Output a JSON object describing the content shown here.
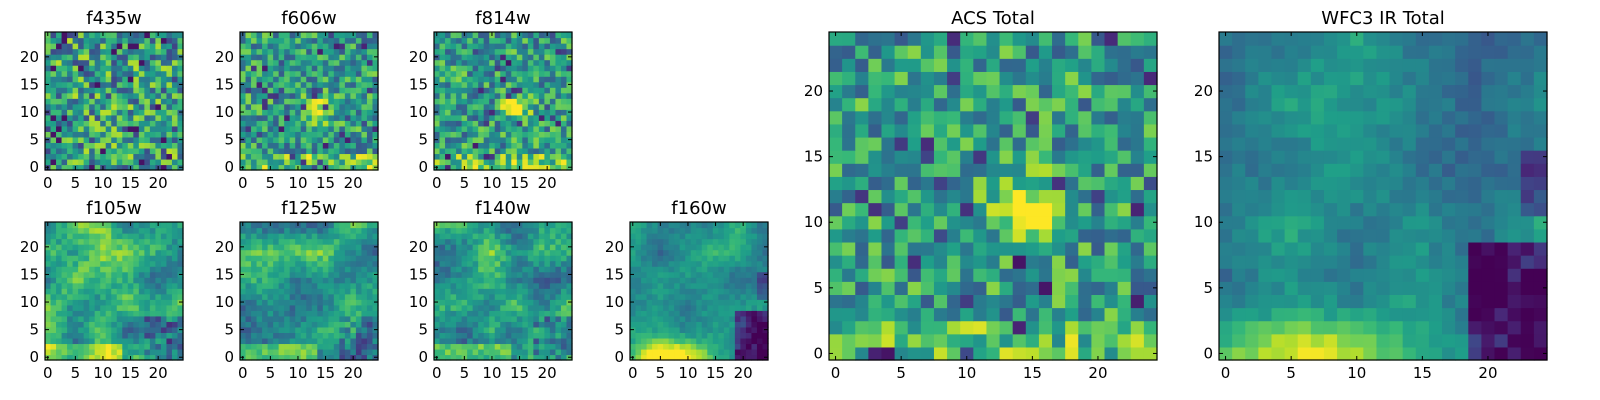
{
  "panels": [
    {
      "title": "f435w",
      "ticks_x": [
        0,
        5,
        10,
        15,
        20
      ],
      "ticks_y": [
        0,
        5,
        10,
        15,
        20
      ],
      "seed": 11,
      "pattern": "flat"
    },
    {
      "title": "f606w",
      "ticks_x": [
        0,
        5,
        10,
        15,
        20
      ],
      "ticks_y": [
        0,
        5,
        10,
        15,
        20
      ],
      "seed": 23,
      "pattern": "acs"
    },
    {
      "title": "f814w",
      "ticks_x": [
        0,
        5,
        10,
        15,
        20
      ],
      "ticks_y": [
        0,
        5,
        10,
        15,
        20
      ],
      "seed": 37,
      "pattern": "acs"
    },
    {
      "title": "f105w",
      "ticks_x": [
        0,
        5,
        10,
        15,
        20
      ],
      "ticks_y": [
        0,
        5,
        10,
        15,
        20
      ],
      "seed": 41,
      "pattern": "ir"
    },
    {
      "title": "f125w",
      "ticks_x": [
        0,
        5,
        10,
        15,
        20
      ],
      "ticks_y": [
        0,
        5,
        10,
        15,
        20
      ],
      "seed": 53,
      "pattern": "ir"
    },
    {
      "title": "f140w",
      "ticks_x": [
        0,
        5,
        10,
        15,
        20
      ],
      "ticks_y": [
        0,
        5,
        10,
        15,
        20
      ],
      "seed": 67,
      "pattern": "ir"
    },
    {
      "title": "f160w",
      "ticks_x": [
        0,
        5,
        10,
        15,
        20
      ],
      "ticks_y": [
        0,
        5,
        10,
        15,
        20
      ],
      "seed": 71,
      "pattern": "ir_dark"
    },
    {
      "title": "ACS Total",
      "ticks_x": [
        0,
        5,
        10,
        15,
        20
      ],
      "ticks_y": [
        0,
        5,
        10,
        15,
        20
      ],
      "seed": 83,
      "pattern": "acs"
    },
    {
      "title": "WFC3 IR Total",
      "ticks_x": [
        0,
        5,
        10,
        15,
        20
      ],
      "ticks_y": [
        0,
        5,
        10,
        15,
        20
      ],
      "seed": 97,
      "pattern": "ir_dark"
    }
  ],
  "chart_data": [
    {
      "type": "heatmap",
      "title": "f435w",
      "grid_size": [
        25,
        25
      ],
      "xlim": [
        -0.5,
        24.5
      ],
      "ylim": [
        -0.5,
        24.5
      ],
      "colormap": "viridis",
      "note": "pixel values not labeled; noisy field"
    },
    {
      "type": "heatmap",
      "title": "f606w",
      "grid_size": [
        25,
        25
      ],
      "xlim": [
        -0.5,
        24.5
      ],
      "ylim": [
        -0.5,
        24.5
      ],
      "colormap": "viridis"
    },
    {
      "type": "heatmap",
      "title": "f814w",
      "grid_size": [
        25,
        25
      ],
      "xlim": [
        -0.5,
        24.5
      ],
      "ylim": [
        -0.5,
        24.5
      ],
      "colormap": "viridis"
    },
    {
      "type": "heatmap",
      "title": "f105w",
      "grid_size": [
        25,
        25
      ],
      "xlim": [
        -0.5,
        24.5
      ],
      "ylim": [
        -0.5,
        24.5
      ],
      "colormap": "viridis"
    },
    {
      "type": "heatmap",
      "title": "f125w",
      "grid_size": [
        25,
        25
      ],
      "xlim": [
        -0.5,
        24.5
      ],
      "ylim": [
        -0.5,
        24.5
      ],
      "colormap": "viridis"
    },
    {
      "type": "heatmap",
      "title": "f140w",
      "grid_size": [
        25,
        25
      ],
      "xlim": [
        -0.5,
        24.5
      ],
      "ylim": [
        -0.5,
        24.5
      ],
      "colormap": "viridis"
    },
    {
      "type": "heatmap",
      "title": "f160w",
      "grid_size": [
        25,
        25
      ],
      "xlim": [
        -0.5,
        24.5
      ],
      "ylim": [
        -0.5,
        24.5
      ],
      "colormap": "viridis"
    },
    {
      "type": "heatmap",
      "title": "ACS Total",
      "grid_size": [
        25,
        25
      ],
      "xlim": [
        -0.5,
        24.5
      ],
      "ylim": [
        -0.5,
        24.5
      ],
      "colormap": "viridis"
    },
    {
      "type": "heatmap",
      "title": "WFC3 IR Total",
      "grid_size": [
        25,
        25
      ],
      "xlim": [
        -0.5,
        24.5
      ],
      "ylim": [
        -0.5,
        24.5
      ],
      "colormap": "viridis"
    }
  ],
  "colors": {
    "viridis": [
      "#440154",
      "#482878",
      "#3e4989",
      "#31688e",
      "#26828e",
      "#1f9e89",
      "#35b779",
      "#6ece58",
      "#b5de2b",
      "#fde725"
    ]
  }
}
